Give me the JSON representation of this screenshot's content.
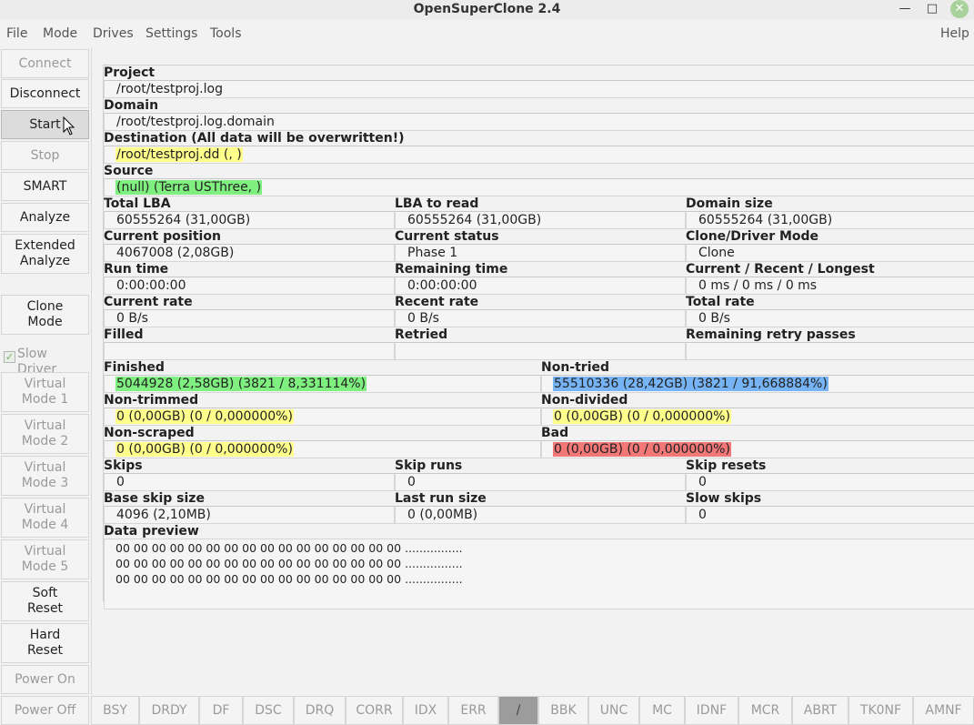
{
  "window": {
    "title": "OpenSuperClone 2.4"
  },
  "menu": {
    "file": "File",
    "mode": "Mode",
    "drives": "Drives",
    "settings": "Settings",
    "tools": "Tools",
    "help": "Help"
  },
  "sidebar": {
    "connect": "Connect",
    "disconnect": "Disconnect",
    "start": "Start",
    "stop": "Stop",
    "smart": "SMART",
    "analyze": "Analyze",
    "extended_analyze": "Extended\nAnalyze",
    "clone_mode": "Clone\nMode",
    "slow_driver": "Slow\nDriver",
    "slow_driver_checked": true,
    "virtual_mode_1": "Virtual\nMode 1",
    "virtual_mode_2": "Virtual\nMode 2",
    "virtual_mode_3": "Virtual\nMode 3",
    "virtual_mode_4": "Virtual\nMode 4",
    "virtual_mode_5": "Virtual\nMode 5",
    "soft_reset": "Soft\nReset",
    "hard_reset": "Hard\nReset",
    "power_on": "Power On",
    "power_off": "Power Off"
  },
  "info": {
    "project_label": "Project",
    "project_value": "/root/testproj.log",
    "domain_label": "Domain",
    "domain_value": "/root/testproj.log.domain",
    "destination_label": "Destination (All data will be overwritten!)",
    "destination_value": "/root/testproj.dd (, )",
    "source_label": "Source",
    "source_value": "(null) (Terra  USThree, )",
    "total_lba_label": "Total LBA",
    "total_lba_value": "60555264 (31,00GB)",
    "lba_to_read_label": "LBA to read",
    "lba_to_read_value": "60555264 (31,00GB)",
    "domain_size_label": "Domain size",
    "domain_size_value": "60555264 (31,00GB)",
    "current_position_label": "Current position",
    "current_position_value": "4067008 (2,08GB)",
    "current_status_label": "Current status",
    "current_status_value": "Phase 1",
    "clone_driver_mode_label": "Clone/Driver Mode",
    "clone_driver_mode_value": "Clone",
    "run_time_label": "Run time",
    "run_time_value": "0:00:00:00",
    "remaining_time_label": "Remaining time",
    "remaining_time_value": "0:00:00:00",
    "crl_label": "Current / Recent / Longest",
    "crl_value": "0 ms / 0 ms / 0 ms",
    "current_rate_label": "Current rate",
    "current_rate_value": "0 B/s",
    "recent_rate_label": "Recent rate",
    "recent_rate_value": "0 B/s",
    "total_rate_label": "Total rate",
    "total_rate_value": "0 B/s",
    "filled_label": "Filled",
    "filled_value": "",
    "retried_label": "Retried",
    "retried_value": "",
    "remaining_retry_label": "Remaining retry passes",
    "remaining_retry_value": "",
    "finished_label": "Finished",
    "finished_value": "5044928 (2,58GB) (3821 / 8,331114%)",
    "nontried_label": "Non-tried",
    "nontried_value": "55510336 (28,42GB) (3821 / 91,668884%)",
    "nontrimmed_label": "Non-trimmed",
    "nontrimmed_value": "0 (0,00GB) (0 / 0,000000%)",
    "nondivided_label": "Non-divided",
    "nondivided_value": "0 (0,00GB) (0 / 0,000000%)",
    "nonscraped_label": "Non-scraped",
    "nonscraped_value": "0 (0,00GB) (0 / 0,000000%)",
    "bad_label": "Bad",
    "bad_value": "0 (0,00GB) (0 / 0,000000%)",
    "skips_label": "Skips",
    "skips_value": "0",
    "skip_runs_label": "Skip runs",
    "skip_runs_value": "0",
    "skip_resets_label": "Skip resets",
    "skip_resets_value": "0",
    "base_skip_label": "Base skip size",
    "base_skip_value": "4096 (2,10MB)",
    "last_run_label": "Last run size",
    "last_run_value": "0 (0,00MB)",
    "slow_skips_label": "Slow skips",
    "slow_skips_value": "0",
    "data_preview_label": "Data preview",
    "preview_line_1": "00 00 00 00 00 00 00 00 00 00 00 00 00 00 00 00 ................",
    "preview_line_2": "00 00 00 00 00 00 00 00 00 00 00 00 00 00 00 00 ................",
    "preview_line_3": "00 00 00 00 00 00 00 00 00 00 00 00 00 00 00 00 ................"
  },
  "status": {
    "bsy": "BSY",
    "drdy": "DRDY",
    "df": "DF",
    "dsc": "DSC",
    "drq": "DRQ",
    "corr": "CORR",
    "idx": "IDX",
    "err": "ERR",
    "slash": "/",
    "bbk": "BBK",
    "unc": "UNC",
    "mc": "MC",
    "idnf": "IDNF",
    "mcr": "MCR",
    "abrt": "ABRT",
    "tk0nf": "TK0NF",
    "amnf": "AMNF"
  },
  "colors": {
    "finished": "#7ff07f",
    "nontried": "#76b4f5",
    "pending": "#ffff8c",
    "bad": "#f27777"
  }
}
